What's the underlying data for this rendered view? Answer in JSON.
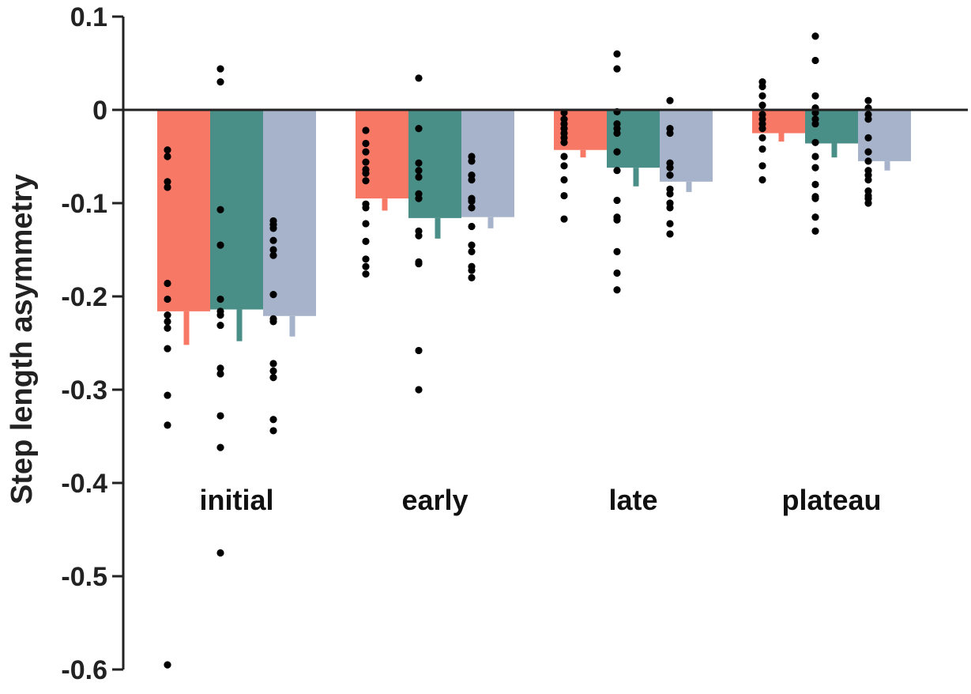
{
  "chart_data": {
    "type": "bar",
    "title": "",
    "xlabel": "",
    "ylabel": "Step length asymmetry",
    "ylim": [
      -0.6,
      0.1
    ],
    "yticks": [
      0.1,
      0,
      -0.1,
      -0.2,
      -0.3,
      -0.4,
      -0.5,
      -0.6
    ],
    "ytick_labels": [
      "0.1",
      "0",
      "-0.1",
      "-0.2",
      "-0.3",
      "-0.4",
      "-0.5",
      "-0.6"
    ],
    "grid": false,
    "legend": "none",
    "categories": [
      "initial",
      "early",
      "late",
      "plateau"
    ],
    "series": [
      {
        "color": "#F87866",
        "values": [
          -0.216,
          -0.095,
          -0.043,
          -0.025
        ],
        "error_lower": [
          -0.252,
          -0.108,
          -0.051,
          -0.034
        ],
        "points": [
          [
            -0.043,
            -0.05,
            -0.077,
            -0.083,
            -0.186,
            -0.203,
            -0.22,
            -0.227,
            -0.234,
            -0.256,
            -0.306,
            -0.338,
            -0.595
          ],
          [
            -0.022,
            -0.036,
            -0.045,
            -0.056,
            -0.064,
            -0.068,
            -0.076,
            -0.101,
            -0.105,
            -0.122,
            -0.141,
            -0.16,
            -0.168,
            -0.176
          ],
          [
            -0.003,
            -0.01,
            -0.015,
            -0.02,
            -0.025,
            -0.03,
            -0.035,
            -0.05,
            -0.06,
            -0.075,
            -0.092,
            -0.117
          ],
          [
            0.03,
            0.025,
            0.015,
            0.005,
            -0.005,
            -0.01,
            -0.015,
            -0.02,
            -0.03,
            -0.042,
            -0.06,
            -0.075
          ]
        ]
      },
      {
        "color": "#4A8E88",
        "values": [
          -0.214,
          -0.116,
          -0.062,
          -0.036
        ],
        "error_lower": [
          -0.248,
          -0.138,
          -0.082,
          -0.051
        ],
        "points": [
          [
            0.044,
            0.03,
            -0.107,
            -0.145,
            -0.203,
            -0.216,
            -0.22,
            -0.231,
            -0.277,
            -0.283,
            -0.328,
            -0.362,
            -0.475
          ],
          [
            0.034,
            -0.02,
            -0.057,
            -0.065,
            -0.072,
            -0.09,
            -0.095,
            -0.13,
            -0.135,
            -0.163,
            -0.165,
            -0.258,
            -0.3
          ],
          [
            0.06,
            0.044,
            -0.002,
            -0.015,
            -0.02,
            -0.025,
            -0.045,
            -0.065,
            -0.097,
            -0.115,
            -0.118,
            -0.152,
            -0.175,
            -0.193
          ],
          [
            0.079,
            0.053,
            0.015,
            0.002,
            -0.003,
            -0.01,
            -0.015,
            -0.035,
            -0.05,
            -0.062,
            -0.08,
            -0.093,
            -0.095,
            -0.115,
            -0.13
          ]
        ]
      },
      {
        "color": "#A7B3CA",
        "values": [
          -0.221,
          -0.115,
          -0.077,
          -0.055
        ],
        "error_lower": [
          -0.243,
          -0.127,
          -0.088,
          -0.065
        ],
        "points": [
          [
            -0.119,
            -0.123,
            -0.127,
            -0.14,
            -0.15,
            -0.156,
            -0.198,
            -0.224,
            -0.227,
            -0.272,
            -0.28,
            -0.287,
            -0.332,
            -0.344
          ],
          [
            -0.05,
            -0.055,
            -0.07,
            -0.075,
            -0.095,
            -0.098,
            -0.105,
            -0.125,
            -0.145,
            -0.152,
            -0.168,
            -0.172,
            -0.18
          ],
          [
            0.01,
            -0.02,
            -0.025,
            -0.057,
            -0.062,
            -0.07,
            -0.085,
            -0.09,
            -0.1,
            -0.105,
            -0.122,
            -0.133
          ],
          [
            0.01,
            0.002,
            -0.005,
            -0.01,
            -0.03,
            -0.045,
            -0.055,
            -0.065,
            -0.07,
            -0.075,
            -0.087,
            -0.092,
            -0.095,
            -0.1
          ]
        ]
      }
    ]
  }
}
